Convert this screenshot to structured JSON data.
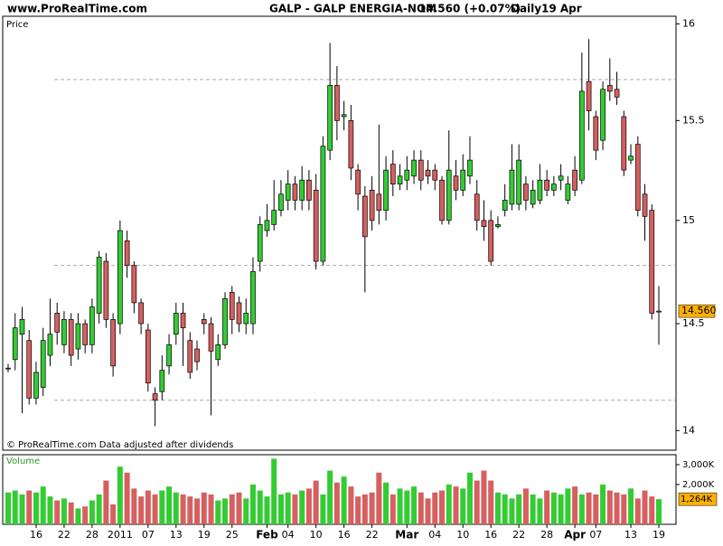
{
  "header": {
    "site": "www.ProRealTime.com",
    "title": "GALP - GALP ENERGIA-NOM",
    "price": "14.560 (+0.07%)",
    "period": "Daily",
    "date": "19 Apr"
  },
  "chart_data": {
    "type": "candlestick",
    "log_scale": true,
    "price_label": "Price",
    "volume_label": "Volume",
    "footer": "© ProRealTime.com Data adjusted after dividends",
    "up_color": "#33cc33",
    "down_color": "#d65f5f",
    "categories": [
      null,
      null,
      null,
      null,
      "16",
      null,
      null,
      null,
      "22",
      null,
      null,
      null,
      "28",
      null,
      null,
      null,
      "2011",
      null,
      null,
      null,
      "07",
      null,
      null,
      null,
      "13",
      null,
      null,
      null,
      "19",
      null,
      null,
      null,
      "25",
      null,
      null,
      null,
      null,
      "Feb",
      null,
      null,
      "04",
      null,
      null,
      null,
      "10",
      null,
      null,
      null,
      "16",
      null,
      null,
      null,
      "22",
      null,
      null,
      null,
      null,
      "Mar",
      null,
      null,
      null,
      "04",
      null,
      null,
      null,
      "10",
      null,
      null,
      null,
      "16",
      null,
      null,
      null,
      "22",
      null,
      null,
      null,
      "28",
      null,
      null,
      null,
      "Apr",
      null,
      null,
      "07",
      null,
      null,
      null,
      null,
      "13",
      null,
      null,
      null,
      "19"
    ],
    "open": [
      14.29,
      14.33,
      14.45,
      14.42,
      14.15,
      14.2,
      14.35,
      14.55,
      14.4,
      14.52,
      14.38,
      14.5,
      14.4,
      14.55,
      14.8,
      14.52,
      14.5,
      14.9,
      14.78,
      14.6,
      14.47,
      14.17,
      14.18,
      14.3,
      14.45,
      14.55,
      14.42,
      14.38,
      14.52,
      14.5,
      14.33,
      14.4,
      14.65,
      14.6,
      14.5,
      14.5,
      14.8,
      14.95,
      14.98,
      15.05,
      15.1,
      15.18,
      15.1,
      15.2,
      15.15,
      14.8,
      15.35,
      15.68,
      15.52,
      15.5,
      15.25,
      15.12,
      15.15,
      15.13,
      15.05,
      15.28,
      15.18,
      15.2,
      15.22,
      15.3,
      15.25,
      15.25,
      15.2,
      15.0,
      15.22,
      15.15,
      15.22,
      15.13,
      15.0,
      15.0,
      14.97,
      15.05,
      15.08,
      15.08,
      15.18,
      15.08,
      15.1,
      15.2,
      15.15,
      15.2,
      15.1,
      15.25,
      15.2,
      15.7,
      15.52,
      15.4,
      15.68,
      15.66,
      15.52,
      15.3,
      15.38,
      15.13,
      15.05,
      14.56
    ],
    "high": [
      14.31,
      14.55,
      14.58,
      14.47,
      14.32,
      14.48,
      14.62,
      14.6,
      14.56,
      14.55,
      14.55,
      14.52,
      14.62,
      14.85,
      14.84,
      14.55,
      15.0,
      14.95,
      14.8,
      14.62,
      14.5,
      14.2,
      14.35,
      14.45,
      14.6,
      14.6,
      14.46,
      14.42,
      14.55,
      14.53,
      14.45,
      14.65,
      14.68,
      14.63,
      14.62,
      14.82,
      15.02,
      15.08,
      15.2,
      15.2,
      15.25,
      15.22,
      15.27,
      15.25,
      15.23,
      15.42,
      15.9,
      15.78,
      15.6,
      15.58,
      15.28,
      15.17,
      15.22,
      15.48,
      15.32,
      15.35,
      15.28,
      15.32,
      15.35,
      15.35,
      15.3,
      15.28,
      15.22,
      15.45,
      15.3,
      15.33,
      15.42,
      15.2,
      15.1,
      15.05,
      15.02,
      15.18,
      15.38,
      15.38,
      15.22,
      15.2,
      15.28,
      15.25,
      15.22,
      15.28,
      15.22,
      15.32,
      15.85,
      15.92,
      15.55,
      15.7,
      15.82,
      15.75,
      15.55,
      15.38,
      15.42,
      15.18,
      15.08,
      14.68
    ],
    "low": [
      14.27,
      14.28,
      14.08,
      14.12,
      14.12,
      14.16,
      14.3,
      14.4,
      14.36,
      14.3,
      14.33,
      14.36,
      14.36,
      14.5,
      14.48,
      14.25,
      14.45,
      14.72,
      14.55,
      14.45,
      14.18,
      14.02,
      14.14,
      14.26,
      14.4,
      14.3,
      14.24,
      14.28,
      14.45,
      14.07,
      14.3,
      14.38,
      14.45,
      14.46,
      14.45,
      14.45,
      14.75,
      14.92,
      14.95,
      15.02,
      15.05,
      15.05,
      15.05,
      15.05,
      14.76,
      14.78,
      15.3,
      15.4,
      15.45,
      15.2,
      15.05,
      14.65,
      14.95,
      14.98,
      15.0,
      15.12,
      15.15,
      15.15,
      15.18,
      15.15,
      15.18,
      15.15,
      14.98,
      14.98,
      15.1,
      15.12,
      15.18,
      14.95,
      14.9,
      14.78,
      14.96,
      15.02,
      15.05,
      15.05,
      15.05,
      15.06,
      15.08,
      15.12,
      15.12,
      15.15,
      15.08,
      15.12,
      15.18,
      15.45,
      15.3,
      15.35,
      15.6,
      15.58,
      15.22,
      15.28,
      15.02,
      14.9,
      14.52,
      14.4
    ],
    "close": [
      14.29,
      14.48,
      14.52,
      14.15,
      14.27,
      14.42,
      14.45,
      14.46,
      14.52,
      14.35,
      14.5,
      14.4,
      14.58,
      14.82,
      14.52,
      14.3,
      14.95,
      14.78,
      14.6,
      14.5,
      14.22,
      14.14,
      14.28,
      14.4,
      14.55,
      14.48,
      14.27,
      14.32,
      14.5,
      14.37,
      14.4,
      14.62,
      14.52,
      14.5,
      14.55,
      14.75,
      14.98,
      15.0,
      15.05,
      15.13,
      15.18,
      15.1,
      15.2,
      15.1,
      14.8,
      15.37,
      15.68,
      15.5,
      15.53,
      15.26,
      15.13,
      14.92,
      15.0,
      15.05,
      15.25,
      15.18,
      15.22,
      15.25,
      15.3,
      15.2,
      15.22,
      15.2,
      15.0,
      15.25,
      15.15,
      15.25,
      15.3,
      15.0,
      14.97,
      14.8,
      14.98,
      15.1,
      15.25,
      15.3,
      15.1,
      15.15,
      15.2,
      15.15,
      15.18,
      15.22,
      15.18,
      15.15,
      15.65,
      15.55,
      15.35,
      15.66,
      15.65,
      15.62,
      15.25,
      15.32,
      15.05,
      15.02,
      14.55,
      14.56
    ],
    "volume": [
      1600,
      1700,
      1500,
      1700,
      1600,
      1900,
      1400,
      1200,
      1300,
      1100,
      800,
      900,
      1200,
      1500,
      2200,
      1000,
      2900,
      2600,
      1800,
      1400,
      1700,
      1500,
      1700,
      1900,
      1600,
      1500,
      1400,
      1300,
      1600,
      1500,
      1200,
      1300,
      1500,
      1600,
      1300,
      2000,
      1700,
      1400,
      3300,
      1500,
      1600,
      1500,
      1700,
      1800,
      2200,
      1500,
      2700,
      2100,
      2400,
      1900,
      1400,
      1500,
      1600,
      2600,
      2100,
      1500,
      1800,
      1700,
      1900,
      1600,
      1300,
      1600,
      1700,
      2000,
      1900,
      1800,
      2600,
      2200,
      2700,
      2200,
      1600,
      1500,
      1300,
      1500,
      1800,
      1500,
      1300,
      1700,
      1600,
      1500,
      1800,
      1900,
      1500,
      1600,
      1500,
      2000,
      1700,
      1600,
      1500,
      1800,
      1300,
      1700,
      1400,
      1264
    ],
    "hlines": [
      15.71,
      14.78,
      14.14
    ],
    "ylim": [
      13.91,
      16.04
    ],
    "yticks": [
      14,
      14.5,
      15,
      15.5,
      16
    ],
    "y2lim": [
      0,
      3500
    ],
    "y2ticks": [
      {
        "value": 3000,
        "label": "3,000K"
      },
      {
        "value": 2000,
        "label": "2,000K"
      }
    ],
    "last_price": {
      "value": 14.56,
      "label": "14.560"
    },
    "last_volume_label": "1,264K"
  }
}
